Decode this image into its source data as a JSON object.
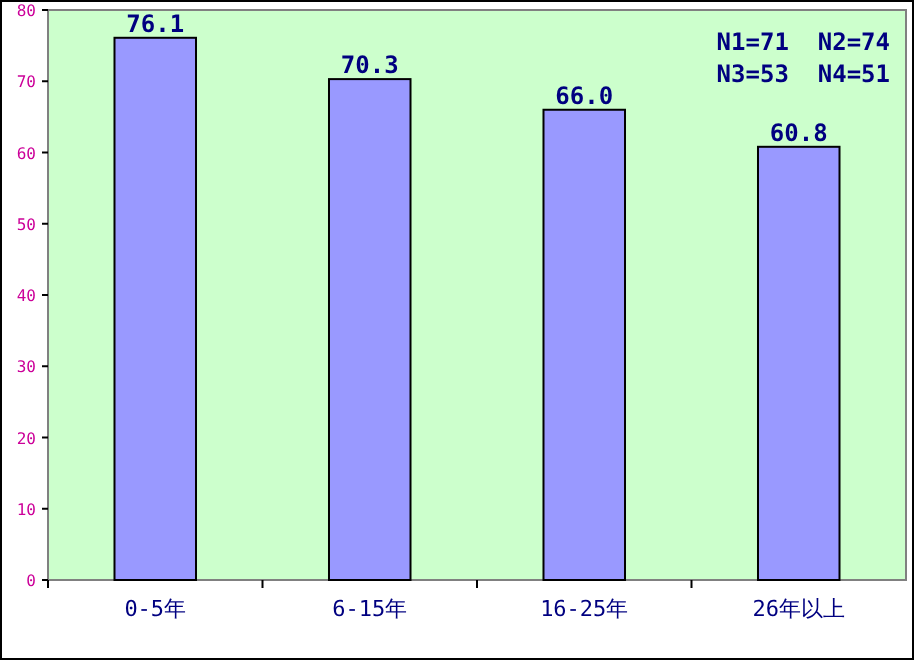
{
  "chart_data": {
    "type": "bar",
    "categories": [
      "0-5年",
      "6-15年",
      "16-25年",
      "26年以上"
    ],
    "values": [
      76.1,
      70.3,
      66.0,
      60.8
    ],
    "value_labels": [
      "76.1",
      "70.3",
      "66.0",
      "60.8"
    ],
    "color": "#9999ff",
    "ylim": [
      0,
      80
    ],
    "yticks": [
      0,
      10,
      20,
      30,
      40,
      50,
      60,
      70,
      80
    ],
    "grid": false,
    "annotations": [
      "N1=71  N2=74",
      "N3=53  N4=51"
    ]
  }
}
